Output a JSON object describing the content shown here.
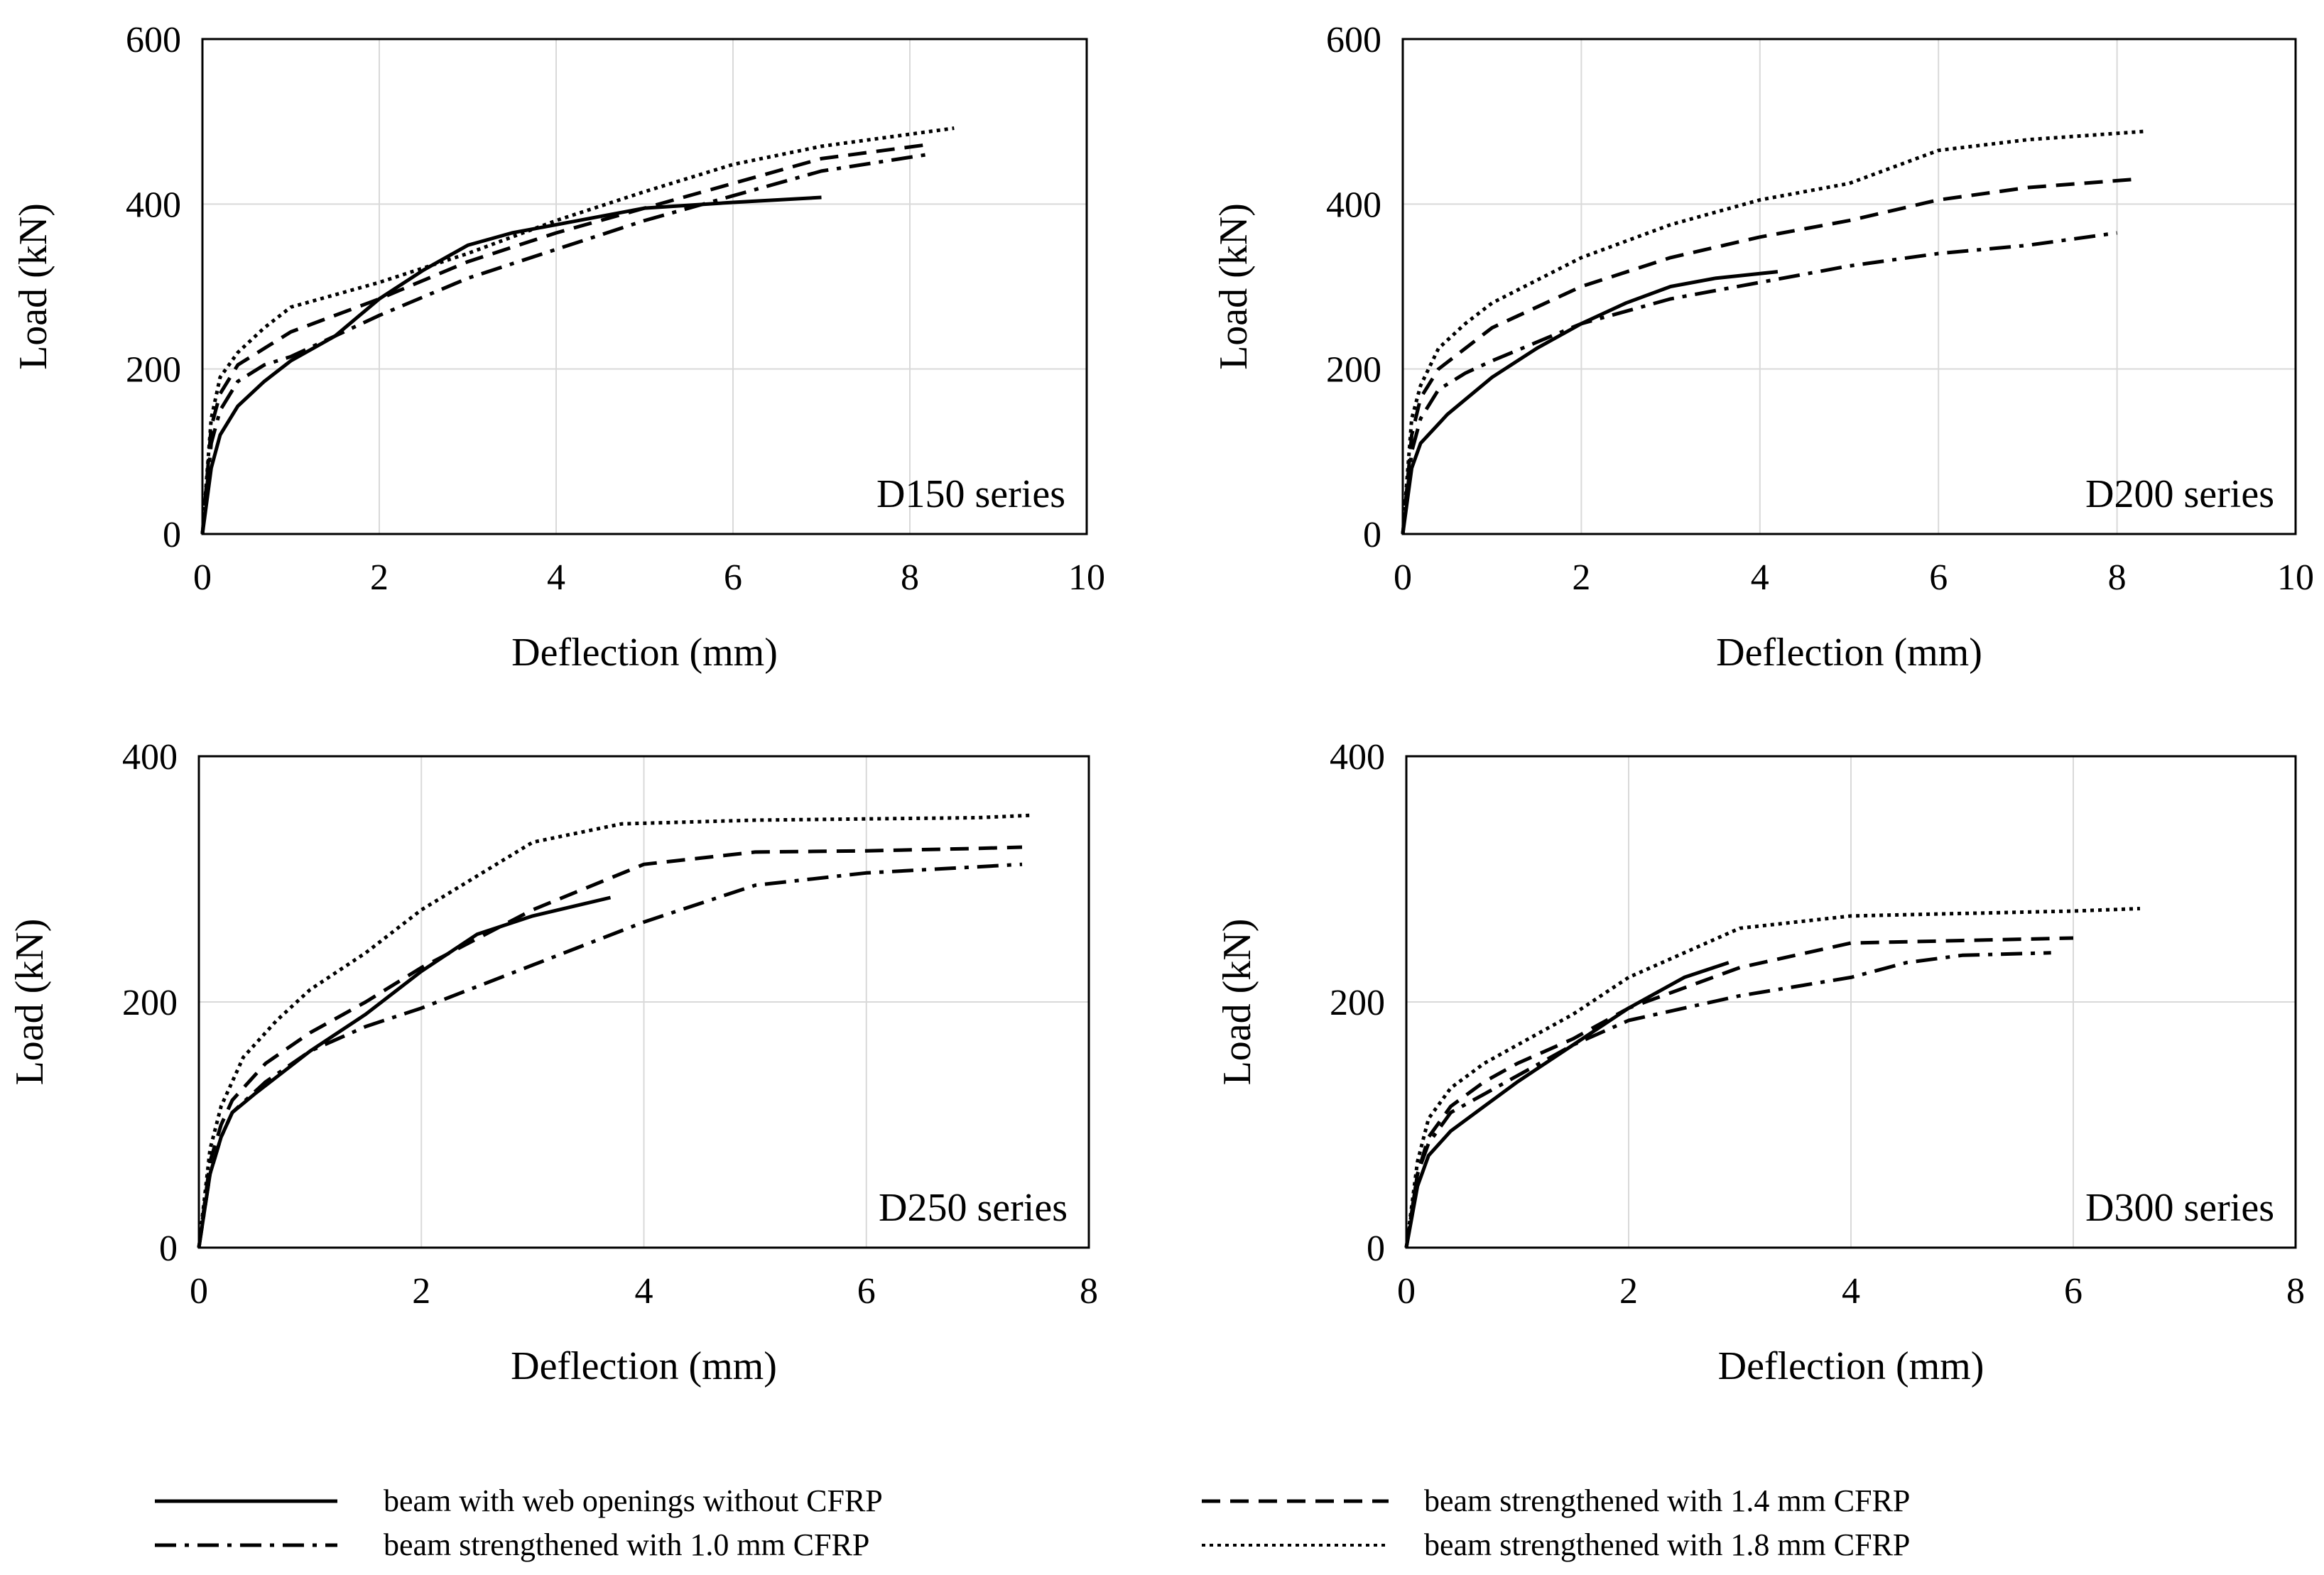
{
  "chart_data": [
    {
      "type": "line",
      "panel": "D150 series",
      "xlabel": "Deflection (mm)",
      "ylabel": "Load (kN)",
      "xlim": [
        0,
        10
      ],
      "ylim": [
        0,
        600
      ],
      "xticks": [
        0,
        2,
        4,
        6,
        8,
        10
      ],
      "yticks": [
        0,
        200,
        400,
        600
      ],
      "grid": true,
      "series": [
        {
          "name": "beam with web openings without CFRP",
          "style": "solid",
          "x": [
            0,
            0.1,
            0.2,
            0.4,
            0.7,
            1.0,
            1.5,
            2.0,
            2.5,
            3.0,
            3.5,
            4.0,
            5.0,
            6.0,
            7.0
          ],
          "y": [
            0,
            80,
            120,
            155,
            185,
            210,
            240,
            285,
            320,
            350,
            365,
            375,
            395,
            402,
            408
          ]
        },
        {
          "name": "beam strengthened with 1.0 mm CFRP",
          "style": "dashdot",
          "x": [
            0,
            0.1,
            0.2,
            0.4,
            0.7,
            1.0,
            2.0,
            3.0,
            4.0,
            5.0,
            6.0,
            7.0,
            8.2
          ],
          "y": [
            0,
            110,
            150,
            185,
            205,
            215,
            265,
            310,
            345,
            380,
            410,
            440,
            460
          ]
        },
        {
          "name": "beam strengthened with 1.4 mm CFRP",
          "style": "dashed",
          "x": [
            0,
            0.1,
            0.2,
            0.4,
            0.7,
            1.0,
            2.0,
            3.0,
            4.0,
            5.0,
            6.0,
            7.0,
            8.2
          ],
          "y": [
            0,
            130,
            170,
            205,
            225,
            245,
            285,
            330,
            365,
            395,
            425,
            455,
            472
          ]
        },
        {
          "name": "beam strengthened with 1.8 mm CFRP",
          "style": "dotted",
          "x": [
            0,
            0.1,
            0.2,
            0.4,
            0.7,
            1.0,
            2.0,
            3.0,
            4.0,
            5.0,
            6.0,
            7.0,
            8.5
          ],
          "y": [
            0,
            140,
            190,
            220,
            250,
            275,
            305,
            340,
            380,
            415,
            448,
            470,
            492
          ]
        }
      ]
    },
    {
      "type": "line",
      "panel": "D200 series",
      "xlabel": "Deflection (mm)",
      "ylabel": "Load (kN)",
      "xlim": [
        0,
        10
      ],
      "ylim": [
        0,
        600
      ],
      "xticks": [
        0,
        2,
        4,
        6,
        8,
        10
      ],
      "yticks": [
        0,
        200,
        400,
        600
      ],
      "grid": true,
      "series": [
        {
          "name": "beam with web openings without CFRP",
          "style": "solid",
          "x": [
            0,
            0.1,
            0.2,
            0.5,
            1.0,
            1.5,
            2.0,
            2.5,
            3.0,
            3.5,
            4.2
          ],
          "y": [
            0,
            80,
            110,
            145,
            190,
            225,
            255,
            280,
            300,
            310,
            318
          ]
        },
        {
          "name": "beam strengthened with 1.0 mm CFRP",
          "style": "dashdot",
          "x": [
            0,
            0.1,
            0.2,
            0.4,
            0.7,
            1.0,
            2.0,
            3.0,
            4.0,
            5.0,
            6.0,
            7.0,
            8.0
          ],
          "y": [
            0,
            100,
            140,
            175,
            195,
            210,
            255,
            285,
            305,
            325,
            340,
            350,
            365
          ]
        },
        {
          "name": "beam strengthened with 1.4 mm CFRP",
          "style": "dashed",
          "x": [
            0,
            0.1,
            0.2,
            0.4,
            0.7,
            1.0,
            2.0,
            3.0,
            4.0,
            5.0,
            6.0,
            7.0,
            8.2
          ],
          "y": [
            0,
            120,
            165,
            200,
            225,
            250,
            300,
            335,
            360,
            380,
            405,
            420,
            430
          ]
        },
        {
          "name": "beam strengthened with 1.8 mm CFRP",
          "style": "dotted",
          "x": [
            0,
            0.1,
            0.2,
            0.4,
            0.7,
            1.0,
            2.0,
            3.0,
            4.0,
            5.0,
            6.0,
            7.0,
            8.3
          ],
          "y": [
            0,
            140,
            180,
            225,
            255,
            280,
            335,
            375,
            405,
            425,
            465,
            478,
            488
          ]
        }
      ]
    },
    {
      "type": "line",
      "panel": "D250 series",
      "xlabel": "Deflection (mm)",
      "ylabel": "Load (kN)",
      "xlim": [
        0,
        8
      ],
      "ylim": [
        0,
        400
      ],
      "xticks": [
        0,
        2,
        4,
        6,
        8
      ],
      "yticks": [
        0,
        200,
        400
      ],
      "grid": true,
      "series": [
        {
          "name": "beam with web openings without CFRP",
          "style": "solid",
          "x": [
            0,
            0.1,
            0.2,
            0.3,
            0.5,
            1.0,
            1.5,
            2.0,
            2.5,
            3.0,
            3.7
          ],
          "y": [
            0,
            60,
            90,
            110,
            125,
            160,
            190,
            225,
            255,
            270,
            285
          ]
        },
        {
          "name": "beam strengthened with 1.0 mm CFRP",
          "style": "dashdot",
          "x": [
            0,
            0.1,
            0.2,
            0.3,
            0.6,
            1.0,
            1.5,
            2.0,
            3.0,
            4.0,
            5.0,
            6.0,
            7.0,
            7.4
          ],
          "y": [
            0,
            60,
            90,
            110,
            135,
            160,
            180,
            195,
            230,
            265,
            295,
            305,
            310,
            312
          ]
        },
        {
          "name": "beam strengthened with 1.4 mm CFRP",
          "style": "dashed",
          "x": [
            0,
            0.1,
            0.2,
            0.3,
            0.6,
            1.0,
            1.5,
            2.0,
            3.0,
            4.0,
            5.0,
            6.0,
            7.0,
            7.4
          ],
          "y": [
            0,
            70,
            100,
            120,
            150,
            175,
            200,
            228,
            275,
            312,
            322,
            323,
            325,
            326
          ]
        },
        {
          "name": "beam strengthened with 1.8 mm CFRP",
          "style": "dotted",
          "x": [
            0,
            0.1,
            0.2,
            0.4,
            0.7,
            1.0,
            1.5,
            2.0,
            3.0,
            3.8,
            5.0,
            6.0,
            7.0,
            7.5
          ],
          "y": [
            0,
            80,
            115,
            155,
            185,
            210,
            240,
            275,
            330,
            345,
            348,
            349,
            350,
            352
          ]
        }
      ]
    },
    {
      "type": "line",
      "panel": "D300 series",
      "xlabel": "Deflection (mm)",
      "ylabel": "Load (kN)",
      "xlim": [
        0,
        8
      ],
      "ylim": [
        0,
        400
      ],
      "xticks": [
        0,
        2,
        4,
        6,
        8
      ],
      "yticks": [
        0,
        200,
        400
      ],
      "grid": true,
      "series": [
        {
          "name": "beam with web openings without CFRP",
          "style": "solid",
          "x": [
            0,
            0.1,
            0.2,
            0.4,
            0.7,
            1.0,
            1.5,
            2.0,
            2.5,
            2.9
          ],
          "y": [
            0,
            50,
            75,
            95,
            115,
            135,
            165,
            195,
            220,
            232
          ]
        },
        {
          "name": "beam strengthened with 1.0 mm CFRP",
          "style": "dashdot",
          "x": [
            0,
            0.1,
            0.2,
            0.4,
            0.7,
            1.0,
            1.5,
            2.0,
            3.0,
            4.0,
            4.5,
            5.0,
            5.8
          ],
          "y": [
            0,
            60,
            85,
            110,
            125,
            140,
            165,
            185,
            205,
            220,
            232,
            238,
            240
          ]
        },
        {
          "name": "beam strengthened with 1.4 mm CFRP",
          "style": "dashed",
          "x": [
            0,
            0.1,
            0.2,
            0.4,
            0.7,
            1.0,
            1.5,
            2.0,
            3.0,
            4.0,
            5.0,
            6.0
          ],
          "y": [
            0,
            60,
            90,
            115,
            135,
            150,
            170,
            195,
            228,
            248,
            250,
            252
          ]
        },
        {
          "name": "beam strengthened with 1.8 mm CFRP",
          "style": "dotted",
          "x": [
            0,
            0.1,
            0.2,
            0.4,
            0.7,
            1.0,
            1.5,
            2.0,
            3.0,
            4.0,
            5.0,
            6.0,
            6.6
          ],
          "y": [
            0,
            70,
            105,
            130,
            150,
            165,
            190,
            220,
            260,
            270,
            272,
            274,
            276
          ]
        }
      ]
    }
  ],
  "legend": {
    "items": [
      {
        "label": "beam with web openings without CFRP",
        "style": "solid"
      },
      {
        "label": "beam strengthened with 1.4 mm CFRP",
        "style": "dashed"
      },
      {
        "label": "beam strengthened with 1.0 mm CFRP",
        "style": "dashdot"
      },
      {
        "label": "beam strengthened with 1.8 mm CFRP",
        "style": "dotted"
      }
    ]
  }
}
